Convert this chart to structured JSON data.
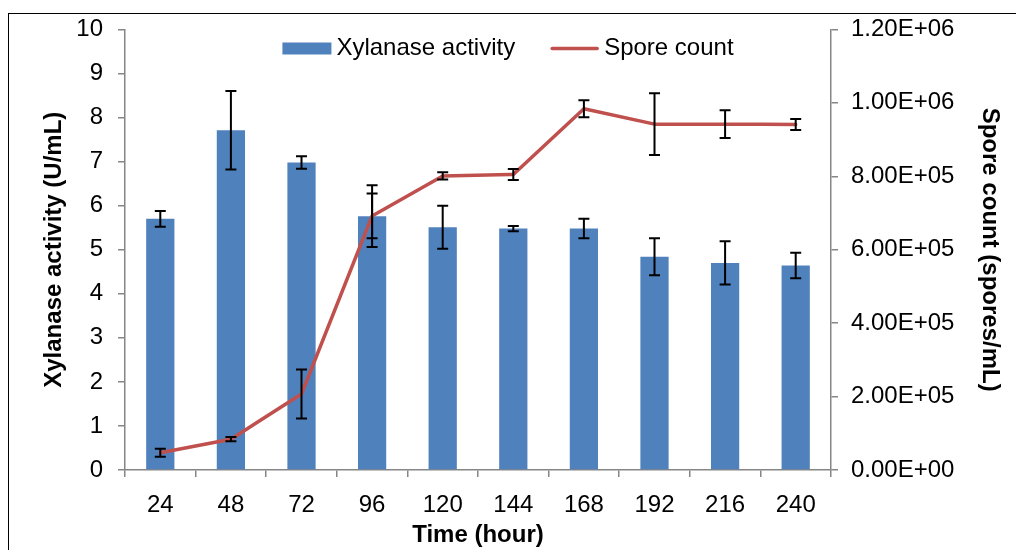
{
  "chart_data": {
    "type": "bar",
    "xlabel": "Time (hour)",
    "ylabel": "Xylanase activity (U/mL)",
    "y2label": "Spore count (spores/mL)",
    "categories": [
      "24",
      "48",
      "72",
      "96",
      "120",
      "144",
      "168",
      "192",
      "216",
      "240"
    ],
    "series": [
      {
        "name": "Xylanase activity",
        "color": "#4f81bd",
        "values": [
          5.7,
          7.71,
          6.98,
          5.76,
          5.51,
          5.48,
          5.48,
          4.84,
          4.7,
          4.64
        ],
        "errors": [
          0.18,
          0.89,
          0.14,
          0.7,
          0.49,
          0.06,
          0.22,
          0.42,
          0.49,
          0.29
        ]
      },
      {
        "name": "Spore count",
        "type": "line",
        "axis": "y2",
        "color": "#c0504d",
        "values": [
          47000,
          84000,
          207000,
          692000,
          801000,
          805000,
          984000,
          942000,
          942000,
          941000
        ],
        "errors": [
          11000,
          6000,
          67000,
          61000,
          10000,
          15000,
          23000,
          84000,
          38000,
          15000
        ]
      }
    ],
    "ylim": [
      0,
      10
    ],
    "yticks": [
      0,
      1,
      2,
      3,
      4,
      5,
      6,
      7,
      8,
      9,
      10
    ],
    "y2lim": [
      0,
      1200000
    ],
    "y2ticks": [
      {
        "value": 0,
        "label": "0.00E+00"
      },
      {
        "value": 200000,
        "label": "2.00E+05"
      },
      {
        "value": 400000,
        "label": "4.00E+05"
      },
      {
        "value": 600000,
        "label": "6.00E+05"
      },
      {
        "value": 800000,
        "label": "8.00E+05"
      },
      {
        "value": 1000000,
        "label": "1.00E+06"
      },
      {
        "value": 1200000,
        "label": "1.20E+06"
      }
    ],
    "grid": false,
    "legend": "top"
  }
}
